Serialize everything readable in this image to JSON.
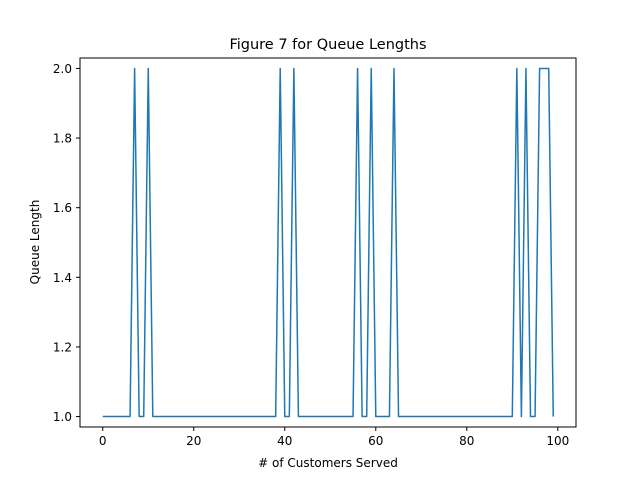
{
  "chart_data": {
    "type": "line",
    "title": "Figure 7 for Queue Lengths",
    "xlabel": "# of Customers Served",
    "ylabel": "Queue Length",
    "xlim": [
      -5,
      104
    ],
    "ylim": [
      0.97,
      2.03
    ],
    "xticks": [
      0,
      20,
      40,
      60,
      80,
      100
    ],
    "xtick_labels": [
      "0",
      "20",
      "40",
      "60",
      "80",
      "100"
    ],
    "yticks": [
      1.0,
      1.2,
      1.4,
      1.6,
      1.8,
      2.0
    ],
    "ytick_labels": [
      "1.0",
      "1.2",
      "1.4",
      "1.6",
      "1.8",
      "2.0"
    ],
    "grid": false,
    "series": [
      {
        "color": "#1f77b4",
        "x": [
          0,
          1,
          2,
          3,
          4,
          5,
          6,
          7,
          8,
          9,
          10,
          11,
          12,
          13,
          14,
          15,
          16,
          17,
          18,
          19,
          20,
          21,
          22,
          23,
          24,
          25,
          26,
          27,
          28,
          29,
          30,
          31,
          32,
          33,
          34,
          35,
          36,
          37,
          38,
          39,
          40,
          41,
          42,
          43,
          44,
          45,
          46,
          47,
          48,
          49,
          50,
          51,
          52,
          53,
          54,
          55,
          56,
          57,
          58,
          59,
          60,
          61,
          62,
          63,
          64,
          65,
          66,
          67,
          68,
          69,
          70,
          71,
          72,
          73,
          74,
          75,
          76,
          77,
          78,
          79,
          80,
          81,
          82,
          83,
          84,
          85,
          86,
          87,
          88,
          89,
          90,
          91,
          92,
          93,
          94,
          95,
          96,
          97,
          98,
          99
        ],
        "y": [
          1,
          1,
          1,
          1,
          1,
          1,
          1,
          2,
          1,
          1,
          2,
          1,
          1,
          1,
          1,
          1,
          1,
          1,
          1,
          1,
          1,
          1,
          1,
          1,
          1,
          1,
          1,
          1,
          1,
          1,
          1,
          1,
          1,
          1,
          1,
          1,
          1,
          1,
          1,
          2,
          1,
          1,
          2,
          1,
          1,
          1,
          1,
          1,
          1,
          1,
          1,
          1,
          1,
          1,
          1,
          1,
          2,
          1,
          1,
          2,
          1,
          1,
          1,
          1,
          2,
          1,
          1,
          1,
          1,
          1,
          1,
          1,
          1,
          1,
          1,
          1,
          1,
          1,
          1,
          1,
          1,
          1,
          1,
          1,
          1,
          1,
          1,
          1,
          1,
          1,
          1,
          2,
          1,
          2,
          1,
          1,
          2,
          2,
          2,
          1
        ]
      }
    ]
  }
}
